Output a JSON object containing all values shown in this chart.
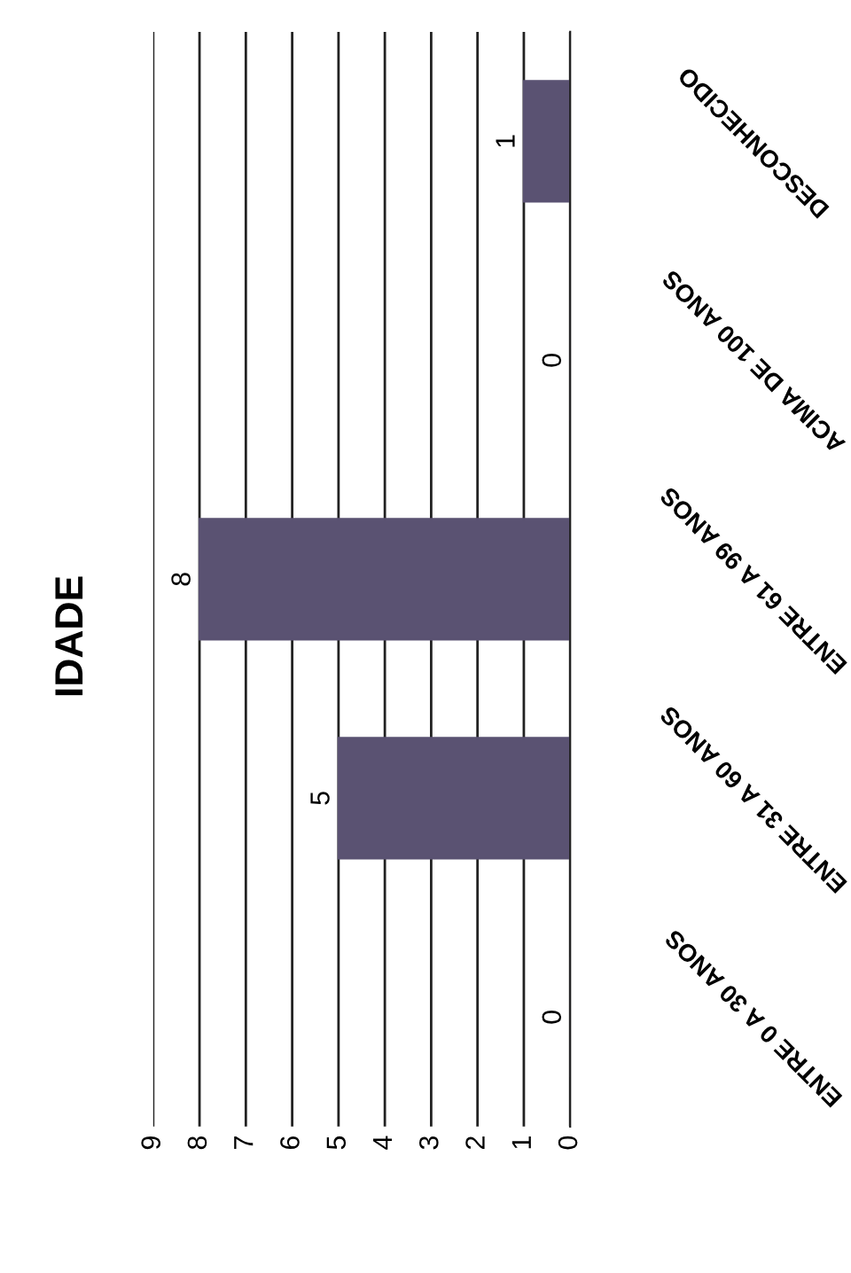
{
  "chart_data": {
    "type": "bar",
    "title": "IDADE",
    "orientation": "horizontal",
    "categories": [
      "DESCONHECIDO",
      "ACIMA DE 100 ANOS",
      "ENTRE 61 A 99 ANOS",
      "ENTRE 31 A 60 ANOS",
      "ENTRE 0 A 30 ANOS"
    ],
    "values": [
      1,
      0,
      8,
      5,
      0
    ],
    "color": "#5a5272",
    "xlim": [
      9,
      0
    ],
    "xticks": [
      0,
      1,
      2,
      3,
      4,
      5,
      6,
      7,
      8,
      9
    ],
    "grid": "x",
    "data_labels": true
  }
}
